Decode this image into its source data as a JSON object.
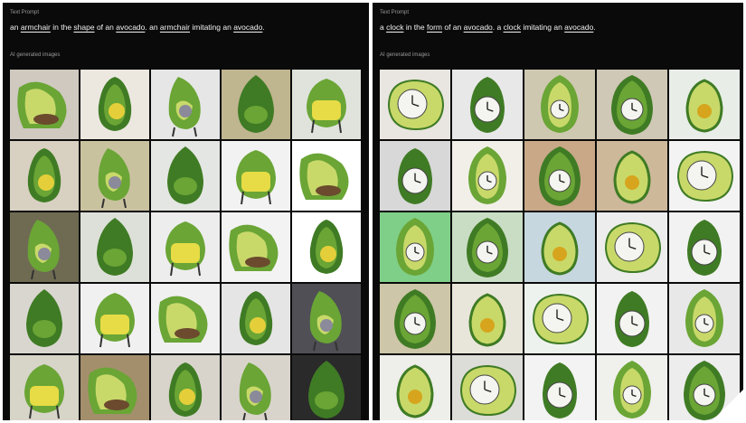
{
  "left_panel": {
    "label": "Text Prompt",
    "prompt": {
      "parts": [
        "an ",
        "armchair",
        " in the ",
        "shape",
        " of an ",
        "avocado",
        ". an ",
        "armchair",
        " imitating an ",
        "avocado",
        "."
      ],
      "underlined": [
        false,
        true,
        false,
        true,
        false,
        true,
        false,
        true,
        false,
        true,
        false
      ]
    },
    "gen_label": "AI generated images",
    "tile_bgs": [
      "#cfc9bf",
      "#ece8e0",
      "#e6e6e6",
      "#bfb58f",
      "#dfe3dc",
      "#d8d0c0",
      "#c9c29f",
      "#e4e6e3",
      "#f2f2f2",
      "#ffffff",
      "#6f6b52",
      "#dde0d8",
      "#ededed",
      "#f3f3f3",
      "#ffffff",
      "#d9d6d0",
      "#f0f0f0",
      "#f0f0f0",
      "#e5e5e5",
      "#4f4f55",
      "#d7d4c8",
      "#a48f6c",
      "#d8d4cc",
      "#d8d4cc",
      "#2a2a2a"
    ]
  },
  "right_panel": {
    "label": "Text Prompt",
    "prompt": {
      "parts": [
        "a ",
        "clock",
        " in the ",
        "form",
        " of an ",
        "avocado",
        ". a ",
        "clock",
        " imitating an ",
        "avocado",
        "."
      ],
      "underlined": [
        false,
        true,
        false,
        true,
        false,
        true,
        false,
        true,
        false,
        true,
        false
      ]
    },
    "gen_label": "AI generated images",
    "tile_bgs": [
      "#e9e5e0",
      "#e8e8e8",
      "#cfc8b0",
      "#cfc8b6",
      "#e8ede8",
      "#d8d8d8",
      "#f2efe8",
      "#c9a888",
      "#cdb89a",
      "#f3f3f3",
      "#7fcf88",
      "#c9ddc4",
      "#c7d7e0",
      "#ededed",
      "#f2f2f2",
      "#cdc6a8",
      "#e8e6da",
      "#eef2ee",
      "#f2f2f2",
      "#e8e8e8",
      "#eeeeea",
      "#dcdcd8",
      "#f3f3f3",
      "#f0f0ec",
      "#ededed"
    ]
  },
  "colors": {
    "avocado_dark": "#3f7b24",
    "avocado_mid": "#6aa535",
    "avocado_light": "#c8d96a",
    "pit": "#6b4a2e",
    "clock_face": "#f4f4f0"
  }
}
